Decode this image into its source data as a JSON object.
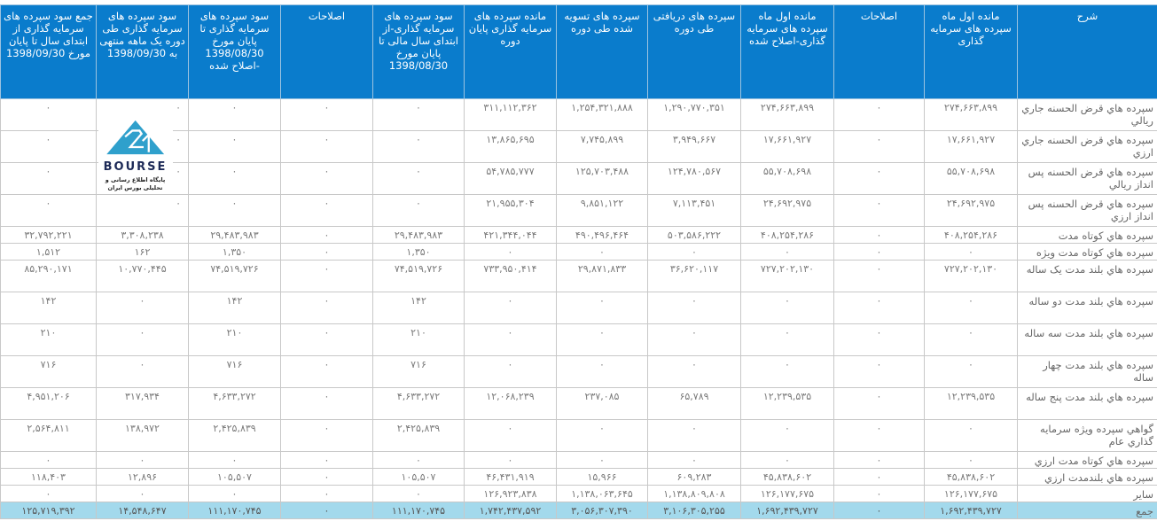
{
  "table": {
    "headers": [
      "شرح",
      "مانده اول ماه سپرده های سرمایه گذاری",
      "اصلاحات",
      "مانده اول ماه سپرده های سرمایه گذاری-اصلاح شده",
      "سپرده های دریافتی طی دوره",
      "سپرده های تسویه شده طی دوره",
      "مانده سپرده های سرمایه گذاری پایان دوره",
      "سود سپرده های سرمایه گذاری-از ابتدای سال مالی تا پایان مورخ 1398/08/30",
      "اصلاحات",
      "سود سپرده های سرمایه گذاری تا پایان مورخ 1398/08/30 -اصلاح شده",
      "سود سپرده های سرمایه گذاری طی دوره یک ماهه منتهی به 1398/09/30",
      "جمع سود سپرده های سرمایه گذاری از ابتدای سال تا پایان مورخ 1398/09/30"
    ],
    "rows": [
      [
        "سپرده هاي قرض الحسنه جاري ريالي",
        "۲۷۴,۶۶۳,۸۹۹",
        "۰",
        "۲۷۴,۶۶۳,۸۹۹",
        "۱,۲۹۰,۷۷۰,۳۵۱",
        "۱,۲۵۴,۳۲۱,۸۸۸",
        "۳۱۱,۱۱۲,۳۶۲",
        "۰",
        "۰",
        "۰",
        "۰",
        "۰"
      ],
      [
        "سپرده هاي قرض الحسنه جاري ارزي",
        "۱۷,۶۶۱,۹۲۷",
        "۰",
        "۱۷,۶۶۱,۹۲۷",
        "۳,۹۴۹,۶۶۷",
        "۷,۷۴۵,۸۹۹",
        "۱۳,۸۶۵,۶۹۵",
        "۰",
        "۰",
        "۰",
        "۰",
        "۰"
      ],
      [
        "سپرده هاي قرض الحسنه پس انداز ريالي",
        "۵۵,۷۰۸,۶۹۸",
        "۰",
        "۵۵,۷۰۸,۶۹۸",
        "۱۲۴,۷۸۰,۵۶۷",
        "۱۲۵,۷۰۳,۴۸۸",
        "۵۴,۷۸۵,۷۷۷",
        "۰",
        "۰",
        "۰",
        "۰",
        "۰"
      ],
      [
        "سپرده هاي قرض الحسنه پس انداز ارزي",
        "۲۴,۶۹۲,۹۷۵",
        "۰",
        "۲۴,۶۹۲,۹۷۵",
        "۷,۱۱۳,۴۵۱",
        "۹,۸۵۱,۱۲۲",
        "۲۱,۹۵۵,۳۰۴",
        "۰",
        "۰",
        "۰",
        "۰",
        "۰"
      ],
      [
        "سپرده هاي کوتاه مدت",
        "۴۰۸,۲۵۴,۲۸۶",
        "۰",
        "۴۰۸,۲۵۴,۲۸۶",
        "۵۰۳,۵۸۶,۲۲۲",
        "۴۹۰,۴۹۶,۴۶۴",
        "۴۲۱,۳۴۴,۰۴۴",
        "۲۹,۴۸۳,۹۸۳",
        "۰",
        "۲۹,۴۸۳,۹۸۳",
        "۳,۳۰۸,۲۳۸",
        "۳۲,۷۹۲,۲۲۱"
      ],
      [
        "سپرده هاي کوتاه مدت ويژه",
        "۰",
        "۰",
        "۰",
        "۰",
        "۰",
        "۰",
        "۱,۳۵۰",
        "۰",
        "۱,۳۵۰",
        "۱۶۲",
        "۱,۵۱۲"
      ],
      [
        "سپرده هاي بلند مدت يک ساله",
        "۷۲۷,۲۰۲,۱۳۰",
        "۰",
        "۷۲۷,۲۰۲,۱۳۰",
        "۳۶,۶۲۰,۱۱۷",
        "۲۹,۸۷۱,۸۳۳",
        "۷۳۳,۹۵۰,۴۱۴",
        "۷۴,۵۱۹,۷۲۶",
        "۰",
        "۷۴,۵۱۹,۷۲۶",
        "۱۰,۷۷۰,۴۴۵",
        "۸۵,۲۹۰,۱۷۱"
      ],
      [
        "سپرده هاي بلند مدت دو ساله",
        "۰",
        "۰",
        "۰",
        "۰",
        "۰",
        "۰",
        "۱۴۲",
        "۰",
        "۱۴۲",
        "۰",
        "۱۴۲"
      ],
      [
        "سپرده هاي بلند مدت سه ساله",
        "۰",
        "۰",
        "۰",
        "۰",
        "۰",
        "۰",
        "۲۱۰",
        "۰",
        "۲۱۰",
        "۰",
        "۲۱۰"
      ],
      [
        "سپرده هاي بلند مدت چهار ساله",
        "۰",
        "۰",
        "۰",
        "۰",
        "۰",
        "۰",
        "۷۱۶",
        "۰",
        "۷۱۶",
        "۰",
        "۷۱۶"
      ],
      [
        "سپرده هاي بلند مدت پنج ساله",
        "۱۲,۲۳۹,۵۳۵",
        "۰",
        "۱۲,۲۳۹,۵۳۵",
        "۶۵,۷۸۹",
        "۲۳۷,۰۸۵",
        "۱۲,۰۶۸,۲۳۹",
        "۴,۶۳۳,۲۷۲",
        "۰",
        "۴,۶۳۳,۲۷۲",
        "۳۱۷,۹۳۴",
        "۴,۹۵۱,۲۰۶"
      ],
      [
        "گواهي سپرده ويژه سرمايه گذاري عام",
        "۰",
        "۰",
        "۰",
        "۰",
        "۰",
        "۰",
        "۲,۴۲۵,۸۳۹",
        "۰",
        "۲,۴۲۵,۸۳۹",
        "۱۳۸,۹۷۲",
        "۲,۵۶۴,۸۱۱"
      ],
      [
        "سپرده هاي کوتاه مدت ارزي",
        "۰",
        "۰",
        "۰",
        "۰",
        "۰",
        "۰",
        "۰",
        "۰",
        "۰",
        "۰",
        "۰"
      ],
      [
        "سپرده هاي بلندمدت ارزي",
        "۴۵,۸۳۸,۶۰۲",
        "۰",
        "۴۵,۸۳۸,۶۰۲",
        "۶۰۹,۲۸۳",
        "۱۵,۹۶۶",
        "۴۶,۴۳۱,۹۱۹",
        "۱۰۵,۵۰۷",
        "۰",
        "۱۰۵,۵۰۷",
        "۱۲,۸۹۶",
        "۱۱۸,۴۰۳"
      ],
      [
        "ساير",
        "۱۲۶,۱۷۷,۶۷۵",
        "۰",
        "۱۲۶,۱۷۷,۶۷۵",
        "۱,۱۳۸,۸۰۹,۸۰۸",
        "۱,۱۳۸,۰۶۳,۶۴۵",
        "۱۲۶,۹۲۳,۸۳۸",
        "۰",
        "۰",
        "۰",
        "۰",
        "۰"
      ]
    ],
    "total": [
      "جمع",
      "۱,۶۹۲,۴۳۹,۷۲۷",
      "۰",
      "۱,۶۹۲,۴۳۹,۷۲۷",
      "۳,۱۰۶,۳۰۵,۲۵۵",
      "۳,۰۵۶,۳۰۷,۳۹۰",
      "۱,۷۴۲,۴۳۷,۵۹۲",
      "۱۱۱,۱۷۰,۷۴۵",
      "۰",
      "۱۱۱,۱۷۰,۷۴۵",
      "۱۴,۵۴۸,۶۴۷",
      "۱۲۵,۷۱۹,۳۹۲"
    ]
  },
  "watermark": {
    "icon": "bourse24-logo-icon",
    "brand": "BOURSE",
    "tagline": "پایگاه اطلاع رسانی و تحلیلی بورس ایران"
  },
  "colors": {
    "header_bg": "#0a7ccc",
    "total_bg": "#a3d9ec",
    "logo_blue": "#2fa0cc",
    "logo_navy": "#1d2a57"
  }
}
